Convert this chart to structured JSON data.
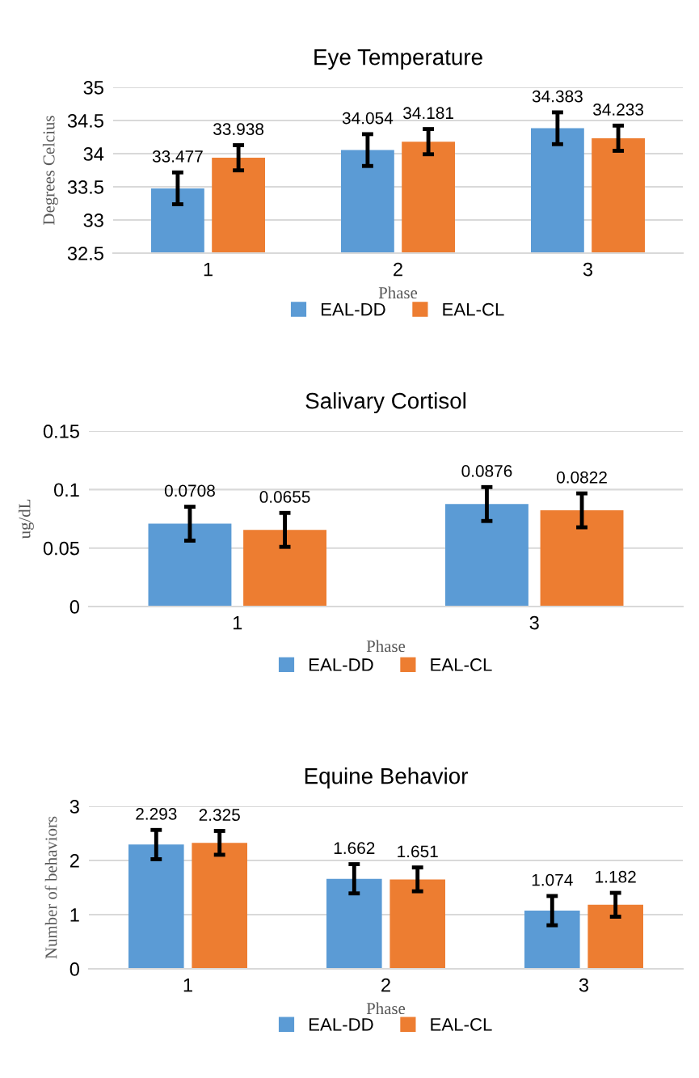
{
  "chart_data": [
    {
      "type": "bar",
      "title": "Eye Temperature",
      "xlabel": "Phase",
      "ylabel": "Degrees Celcius",
      "categories": [
        "1",
        "2",
        "3"
      ],
      "series": [
        {
          "name": "EAL-DD",
          "color": "#5b9bd5",
          "values": [
            33.477,
            34.054,
            34.383
          ],
          "errors": [
            0.24,
            0.24,
            0.24
          ]
        },
        {
          "name": "EAL-CL",
          "color": "#ed7d31",
          "values": [
            33.938,
            34.181,
            34.233
          ],
          "errors": [
            0.19,
            0.19,
            0.19
          ]
        }
      ],
      "ylim": [
        32.5,
        35
      ],
      "yticks": [
        32.5,
        33,
        33.5,
        34,
        34.5,
        35
      ],
      "grid": "y",
      "legend": "bottom",
      "data_labels": true
    },
    {
      "type": "bar",
      "title": "Salivary Cortisol",
      "xlabel": "Phase",
      "ylabel": "ug/dL",
      "categories": [
        "1",
        "3"
      ],
      "series": [
        {
          "name": "EAL-DD",
          "color": "#5b9bd5",
          "values": [
            0.0708,
            0.0876
          ],
          "errors": [
            0.0145,
            0.0145
          ]
        },
        {
          "name": "EAL-CL",
          "color": "#ed7d31",
          "values": [
            0.0655,
            0.0822
          ],
          "errors": [
            0.0145,
            0.0145
          ]
        }
      ],
      "ylim": [
        0,
        0.15
      ],
      "yticks": [
        0,
        0.05,
        0.1,
        0.15
      ],
      "grid": "y",
      "legend": "bottom",
      "data_labels": true
    },
    {
      "type": "bar",
      "title": "Equine Behavior",
      "xlabel": "Phase",
      "ylabel": "Number of behaviors",
      "categories": [
        "1",
        "2",
        "3"
      ],
      "series": [
        {
          "name": "EAL-DD",
          "color": "#5b9bd5",
          "values": [
            2.293,
            1.662,
            1.074
          ],
          "errors": [
            0.27,
            0.27,
            0.27
          ]
        },
        {
          "name": "EAL-CL",
          "color": "#ed7d31",
          "values": [
            2.325,
            1.651,
            1.182
          ],
          "errors": [
            0.22,
            0.22,
            0.22
          ]
        }
      ],
      "ylim": [
        0,
        3
      ],
      "yticks": [
        0,
        1,
        2,
        3
      ],
      "grid": "y",
      "legend": "bottom",
      "data_labels": true
    }
  ]
}
